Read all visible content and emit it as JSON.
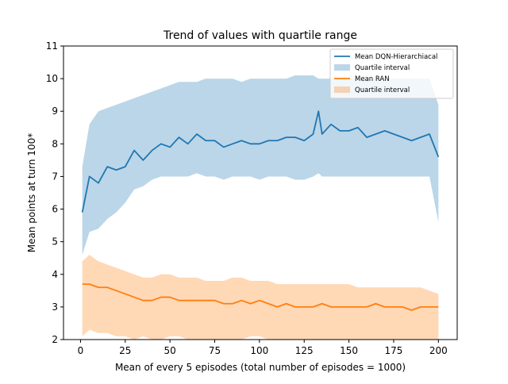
{
  "chart_data": {
    "type": "line",
    "title": "Trend of values with quartile range",
    "xlabel": "Mean of every 5 episodes (total number of episodes = 1000)",
    "ylabel": "Mean points at turn 100*",
    "xlim": [
      -9.5,
      210.5
    ],
    "ylim": [
      2,
      11
    ],
    "xticks": [
      0,
      25,
      50,
      75,
      100,
      125,
      150,
      175,
      200
    ],
    "yticks": [
      2,
      3,
      4,
      5,
      6,
      7,
      8,
      9,
      10,
      11
    ],
    "grid": false,
    "legend_position": "top-right",
    "legend": [
      {
        "label": "Mean DQN-Hierarchiacal",
        "kind": "line",
        "color": "#1f77b4"
      },
      {
        "label": "Quartile interval",
        "kind": "band",
        "color": "#1f77b4"
      },
      {
        "label": "Mean RAN",
        "kind": "line",
        "color": "#ff7f0e"
      },
      {
        "label": "Quartile interval",
        "kind": "band",
        "color": "#ff7f0e"
      }
    ],
    "series": [
      {
        "name": "Mean DQN-Hierarchiacal",
        "color": "#1f77b4",
        "x": [
          1,
          5,
          10,
          15,
          20,
          25,
          30,
          35,
          40,
          45,
          50,
          55,
          60,
          65,
          70,
          75,
          80,
          85,
          90,
          95,
          100,
          105,
          110,
          115,
          120,
          125,
          130,
          133,
          135,
          140,
          145,
          150,
          155,
          160,
          165,
          170,
          175,
          180,
          185,
          190,
          195,
          200
        ],
        "mean": [
          5.9,
          7.0,
          6.8,
          7.3,
          7.2,
          7.3,
          7.8,
          7.5,
          7.8,
          8.0,
          7.9,
          8.2,
          8.0,
          8.3,
          8.1,
          8.1,
          7.9,
          8.0,
          8.1,
          8.0,
          8.0,
          8.1,
          8.1,
          8.2,
          8.2,
          8.1,
          8.3,
          9.0,
          8.3,
          8.6,
          8.4,
          8.4,
          8.5,
          8.2,
          8.3,
          8.4,
          8.3,
          8.2,
          8.1,
          8.2,
          8.3,
          7.6
        ],
        "q1": [
          4.6,
          5.3,
          5.4,
          5.7,
          5.9,
          6.2,
          6.6,
          6.7,
          6.9,
          7.0,
          7.0,
          7.0,
          7.0,
          7.1,
          7.0,
          7.0,
          6.9,
          7.0,
          7.0,
          7.0,
          6.9,
          7.0,
          7.0,
          7.0,
          6.9,
          6.9,
          7.0,
          7.1,
          7.0,
          7.0,
          7.0,
          7.0,
          7.0,
          7.0,
          7.0,
          7.0,
          7.0,
          7.0,
          7.0,
          7.0,
          7.0,
          5.6
        ],
        "q3": [
          7.3,
          8.6,
          9.0,
          9.1,
          9.2,
          9.3,
          9.4,
          9.5,
          9.6,
          9.7,
          9.8,
          9.9,
          9.9,
          9.9,
          10.0,
          10.0,
          10.0,
          10.0,
          9.9,
          10.0,
          10.0,
          10.0,
          10.0,
          10.0,
          10.1,
          10.1,
          10.1,
          10.0,
          10.0,
          10.0,
          10.0,
          10.0,
          10.0,
          10.0,
          10.0,
          10.0,
          10.0,
          10.0,
          10.0,
          10.0,
          10.0,
          9.2
        ]
      },
      {
        "name": "Mean RAN",
        "color": "#ff7f0e",
        "x": [
          1,
          5,
          10,
          15,
          20,
          25,
          30,
          35,
          40,
          45,
          50,
          55,
          60,
          65,
          70,
          75,
          80,
          85,
          90,
          95,
          100,
          105,
          110,
          115,
          120,
          125,
          130,
          135,
          140,
          145,
          150,
          155,
          160,
          165,
          170,
          175,
          180,
          185,
          190,
          195,
          200
        ],
        "mean": [
          3.7,
          3.7,
          3.6,
          3.6,
          3.5,
          3.4,
          3.3,
          3.2,
          3.2,
          3.3,
          3.3,
          3.2,
          3.2,
          3.2,
          3.2,
          3.2,
          3.1,
          3.1,
          3.2,
          3.1,
          3.2,
          3.1,
          3.0,
          3.1,
          3.0,
          3.0,
          3.0,
          3.1,
          3.0,
          3.0,
          3.0,
          3.0,
          3.0,
          3.1,
          3.0,
          3.0,
          3.0,
          2.9,
          3.0,
          3.0,
          3.0
        ],
        "q1": [
          2.1,
          2.3,
          2.2,
          2.2,
          2.1,
          2.1,
          2.0,
          2.1,
          2.0,
          2.0,
          2.1,
          2.1,
          2.0,
          2.0,
          2.0,
          2.0,
          2.0,
          2.0,
          2.0,
          2.1,
          2.1,
          2.0,
          2.0,
          2.0,
          2.0,
          2.0,
          2.0,
          2.0,
          2.0,
          2.0,
          2.0,
          2.0,
          2.0,
          2.0,
          2.0,
          2.0,
          2.0,
          2.0,
          2.0,
          2.0,
          2.0
        ],
        "q3": [
          4.4,
          4.6,
          4.4,
          4.3,
          4.2,
          4.1,
          4.0,
          3.9,
          3.9,
          4.0,
          4.0,
          3.9,
          3.9,
          3.9,
          3.8,
          3.8,
          3.8,
          3.9,
          3.9,
          3.8,
          3.8,
          3.8,
          3.7,
          3.7,
          3.7,
          3.7,
          3.7,
          3.7,
          3.7,
          3.7,
          3.7,
          3.6,
          3.6,
          3.6,
          3.6,
          3.6,
          3.6,
          3.6,
          3.6,
          3.5,
          3.4
        ]
      }
    ]
  }
}
